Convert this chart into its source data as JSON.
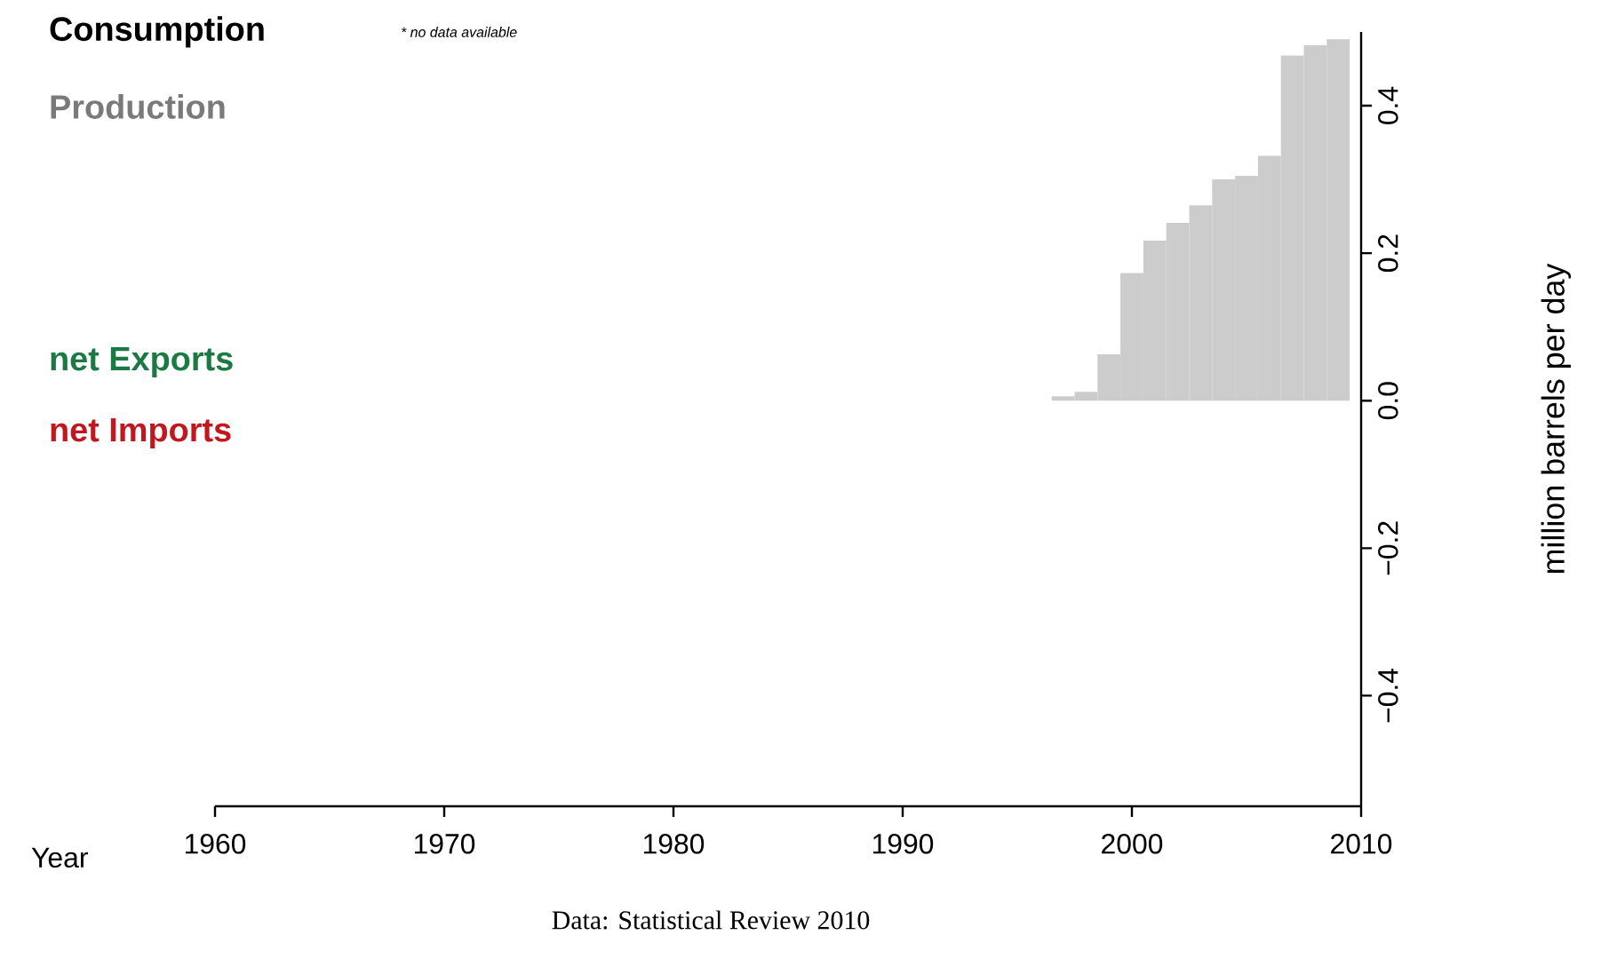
{
  "chart_data": {
    "type": "bar",
    "xlabel": "Year",
    "ylabel": "million barrels per day",
    "x": [
      1993,
      1994,
      1995,
      1996,
      1997,
      1998,
      1999,
      2000,
      2001,
      2002,
      2003,
      2004,
      2005,
      2006,
      2007,
      2008,
      2009
    ],
    "series": [
      {
        "name": "Consumption",
        "color": "#000000",
        "values": [
          null,
          null,
          null,
          null,
          null,
          null,
          null,
          null,
          null,
          null,
          null,
          null,
          null,
          null,
          null,
          null,
          null
        ]
      },
      {
        "name": "Production",
        "color": "#cccccc",
        "values": [
          0.0,
          0.0,
          0.0,
          0.0,
          0.006,
          0.012,
          0.063,
          0.173,
          0.217,
          0.241,
          0.265,
          0.3,
          0.305,
          0.332,
          0.468,
          0.482,
          0.49
        ]
      },
      {
        "name": "net Exports",
        "color": "#1b7a43",
        "values": [
          null,
          null,
          null,
          null,
          null,
          null,
          null,
          null,
          null,
          null,
          null,
          null,
          null,
          null,
          null,
          null,
          null
        ]
      },
      {
        "name": "net Imports",
        "color": "#c0181e",
        "values": [
          null,
          null,
          null,
          null,
          null,
          null,
          null,
          null,
          null,
          null,
          null,
          null,
          null,
          null,
          null,
          null,
          null
        ]
      }
    ],
    "xlim": [
      1960,
      2010
    ],
    "xticks": [
      1960,
      1970,
      1980,
      1990,
      2000,
      2010
    ],
    "ylim": [
      -0.55,
      0.5
    ],
    "yticks": [
      {
        "value": -0.4,
        "label": "−0.4"
      },
      {
        "value": -0.2,
        "label": "−0.2"
      },
      {
        "value": 0,
        "label": "0.0"
      },
      {
        "value": 0.2,
        "label": "0.2"
      },
      {
        "value": 0.4,
        "label": "0.4"
      }
    ],
    "legend": "left",
    "annotations": [
      "* no data available",
      "Data: Statistical Review 2010"
    ]
  }
}
